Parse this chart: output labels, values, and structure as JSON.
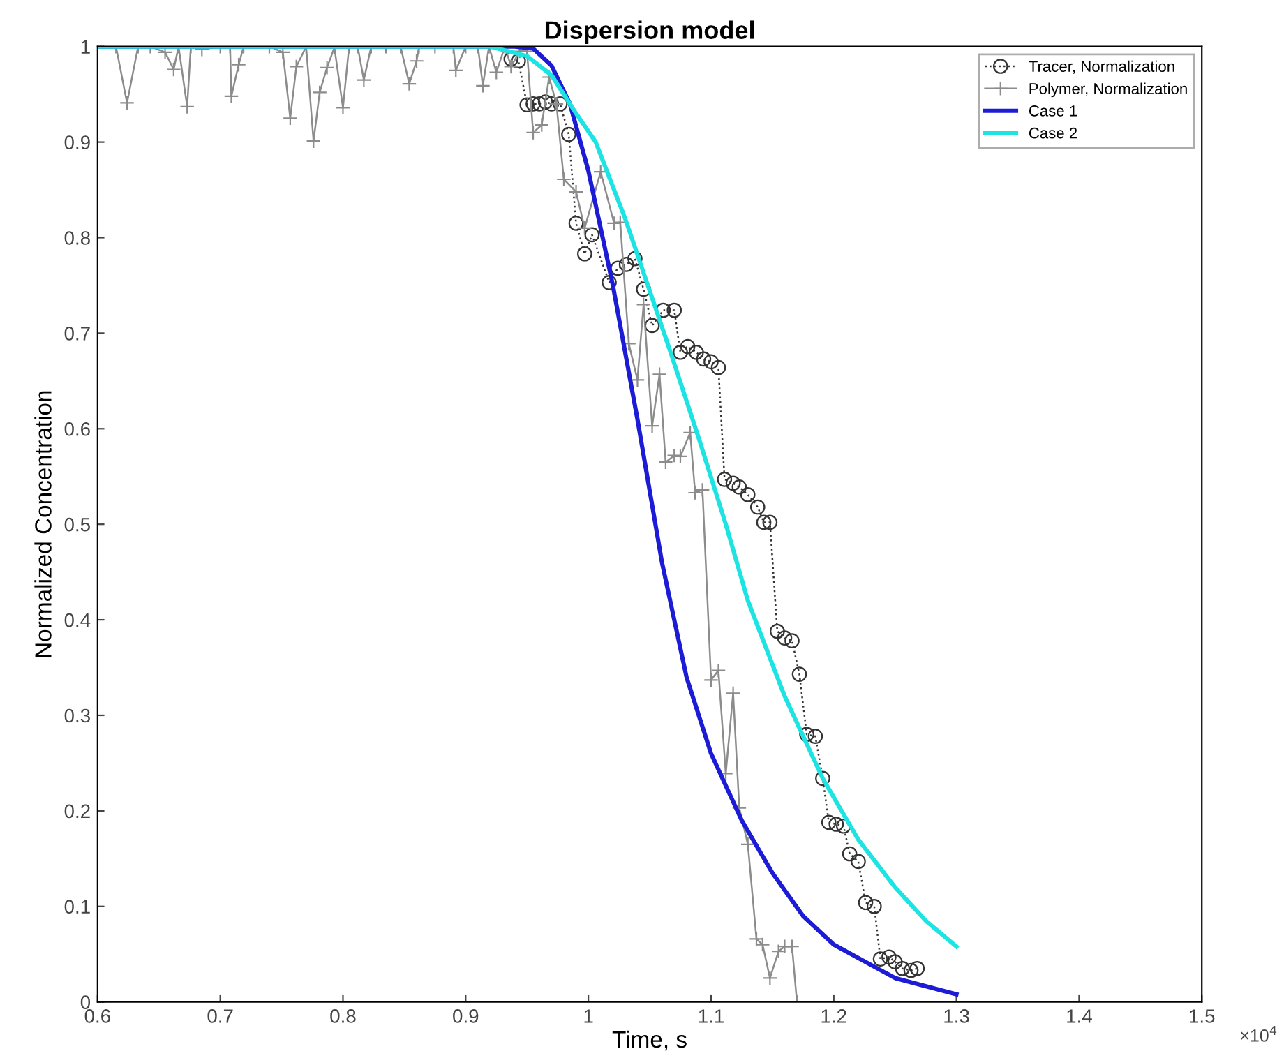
{
  "chart_data": {
    "type": "line",
    "title": "Dispersion model",
    "xlabel": "Time, s",
    "ylabel": "Normalized Concentration",
    "annotations": [
      "×10$^{4}$"
    ],
    "xlim": [
      0.6,
      1.5
    ],
    "xticks": [
      0.6,
      0.7,
      0.8,
      0.9,
      1,
      1.1,
      1.2,
      1.3,
      1.4,
      1.5
    ],
    "ylim": [
      0,
      1
    ],
    "yticks": [
      0,
      0.1,
      0.2,
      0.3,
      0.4,
      0.5,
      0.6,
      0.7,
      0.8,
      0.9,
      1
    ],
    "grid": false,
    "legend": "top right",
    "series": [
      {
        "name": "Tracer, Normalization",
        "color": "#333333",
        "marker": "circle",
        "line_style": "dotted",
        "x": [
          0.937,
          0.943,
          0.95,
          0.955,
          0.96,
          0.965,
          0.97,
          0.977,
          0.984,
          0.99,
          0.997,
          1.003,
          1.017,
          1.024,
          1.031,
          1.038,
          1.045,
          1.052,
          1.061,
          1.07,
          1.075,
          1.081,
          1.088,
          1.094,
          1.1,
          1.106,
          1.111,
          1.118,
          1.123,
          1.13,
          1.138,
          1.143,
          1.148,
          1.154,
          1.16,
          1.166,
          1.172,
          1.178,
          1.185,
          1.191,
          1.196,
          1.202,
          1.208,
          1.213,
          1.22,
          1.226,
          1.233,
          1.238,
          1.245,
          1.25,
          1.256,
          1.263,
          1.268
        ],
        "values": [
          0.987,
          0.985,
          0.939,
          0.94,
          0.94,
          0.942,
          0.94,
          0.94,
          0.908,
          0.815,
          0.783,
          0.803,
          0.753,
          0.768,
          0.772,
          0.778,
          0.746,
          0.708,
          0.724,
          0.724,
          0.68,
          0.686,
          0.68,
          0.673,
          0.67,
          0.664,
          0.547,
          0.543,
          0.539,
          0.531,
          0.518,
          0.502,
          0.502,
          0.388,
          0.381,
          0.378,
          0.343,
          0.28,
          0.278,
          0.234,
          0.188,
          0.186,
          0.184,
          0.155,
          0.147,
          0.104,
          0.1,
          0.045,
          0.047,
          0.042,
          0.035,
          0.033,
          0.035
        ]
      },
      {
        "name": "Polymer, Normalization",
        "color": "#8c8c8c",
        "marker": "cross",
        "line_style": "solid",
        "x": [
          0.6,
          0.615,
          0.624,
          0.633,
          0.643,
          0.655,
          0.662,
          0.666,
          0.673,
          0.676,
          0.685,
          0.7,
          0.708,
          0.709,
          0.715,
          0.719,
          0.74,
          0.751,
          0.757,
          0.762,
          0.77,
          0.776,
          0.781,
          0.787,
          0.793,
          0.8,
          0.805,
          0.812,
          0.817,
          0.823,
          0.835,
          0.847,
          0.854,
          0.86,
          0.862,
          0.875,
          0.89,
          0.892,
          0.9,
          0.91,
          0.914,
          0.919,
          0.925,
          0.932,
          0.937,
          0.944,
          0.95,
          0.955,
          0.962,
          0.968,
          0.974,
          0.98,
          0.99,
          0.997,
          1.01,
          1.021,
          1.026,
          1.033,
          1.04,
          1.045,
          1.052,
          1.058,
          1.063,
          1.07,
          1.075,
          1.083,
          1.087,
          1.093,
          1.1,
          1.106,
          1.112,
          1.118,
          1.123,
          1.13,
          1.137,
          1.142,
          1.148,
          1.155,
          1.16,
          1.166,
          1.17
        ],
        "values": [
          1,
          1,
          0.941,
          1,
          1,
          0.994,
          0.976,
          1,
          0.937,
          1,
          0.997,
          1,
          1,
          0.948,
          0.981,
          1,
          1,
          0.994,
          0.925,
          0.979,
          1,
          0.901,
          0.952,
          0.978,
          0.999,
          0.936,
          1,
          1,
          0.965,
          1,
          1,
          1,
          0.961,
          0.985,
          1,
          1,
          1,
          0.975,
          1,
          1,
          0.959,
          1,
          0.973,
          1,
          0.979,
          0.995,
          0.995,
          0.91,
          0.918,
          0.968,
          0.94,
          0.861,
          0.848,
          0.81,
          0.869,
          0.815,
          0.816,
          0.689,
          0.651,
          0.73,
          0.603,
          0.657,
          0.565,
          0.572,
          0.571,
          0.596,
          0.533,
          0.536,
          0.337,
          0.347,
          0.239,
          0.323,
          0.203,
          0.165,
          0.066,
          0.06,
          0.025,
          0.053,
          0.058,
          0.058,
          0
        ]
      },
      {
        "name": "Case 1",
        "color": "#1c1cd6",
        "marker": "none",
        "line_style": "solid",
        "x": [
          0.6,
          0.94,
          0.955,
          0.97,
          0.985,
          1.0,
          1.02,
          1.04,
          1.06,
          1.08,
          1.1,
          1.125,
          1.15,
          1.175,
          1.2,
          1.25,
          1.3
        ],
        "values": [
          1,
          1,
          0.998,
          0.98,
          0.94,
          0.87,
          0.75,
          0.61,
          0.46,
          0.34,
          0.26,
          0.19,
          0.135,
          0.09,
          0.06,
          0.025,
          0.008
        ]
      },
      {
        "name": "Case 2",
        "color": "#1ee3e3",
        "marker": "none",
        "line_style": "solid",
        "x": [
          0.6,
          0.92,
          0.95,
          0.97,
          0.99,
          1.006,
          1.03,
          1.067,
          1.09,
          1.112,
          1.13,
          1.16,
          1.191,
          1.22,
          1.25,
          1.275,
          1.3
        ],
        "values": [
          1,
          1,
          0.99,
          0.97,
          0.93,
          0.9,
          0.82,
          0.68,
          0.59,
          0.5,
          0.42,
          0.32,
          0.234,
          0.17,
          0.12,
          0.085,
          0.058
        ]
      }
    ]
  }
}
